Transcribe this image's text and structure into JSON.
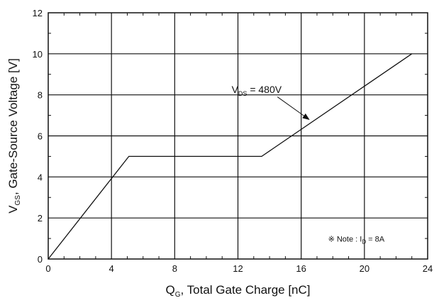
{
  "chart_data": {
    "type": "line",
    "title": "",
    "xlabel": {
      "main": "Q",
      "sub": "G",
      "rest": ", Total Gate Charge [nC]"
    },
    "ylabel": {
      "main": "V",
      "sub": "GS",
      "rest": ", Gate-Source Voltage [V]"
    },
    "xlim": [
      0,
      24
    ],
    "ylim": [
      0,
      12
    ],
    "xticks": [
      0,
      4,
      8,
      12,
      16,
      20,
      24
    ],
    "yticks": [
      0,
      2,
      4,
      6,
      8,
      10,
      12
    ],
    "grid": true,
    "series": [
      {
        "x": [
          0,
          5.1,
          13.5,
          23
        ],
        "y": [
          0,
          5.0,
          5.0,
          10.0
        ]
      }
    ],
    "annotations": [
      {
        "main": "V",
        "sub": "DS",
        "rest": " = 480V",
        "arrow_to": {
          "x": 16.5,
          "y": 6.8
        }
      }
    ],
    "note": {
      "symbol": "※",
      "main": " Note : I",
      "sub": "D",
      "rest": " = 8A"
    }
  }
}
